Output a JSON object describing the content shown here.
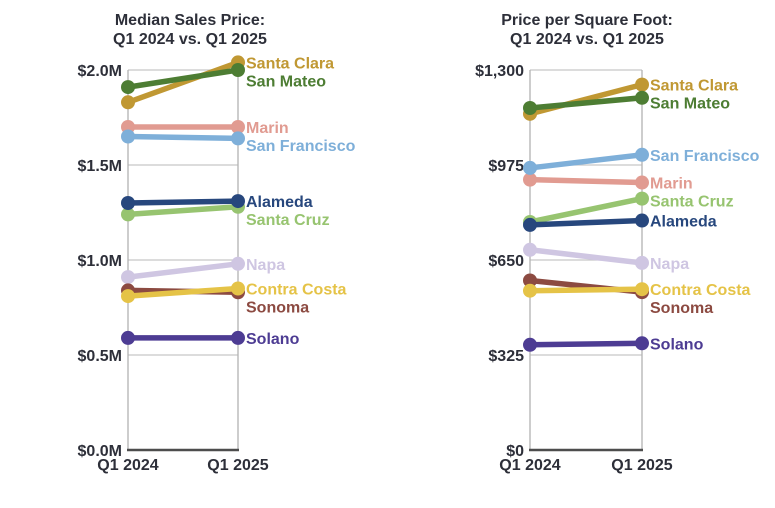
{
  "page": {
    "background": "#ffffff",
    "text_color": "#2d2f39",
    "grid_color": "#c8c8c8",
    "border_color": "#b2b2b2",
    "axis_color": "#4d4d4d"
  },
  "chart_data": [
    {
      "type": "line",
      "subtype": "slopegraph",
      "title": "Median Sales Price:",
      "subtitle": "Q1 2024 vs. Q1 2025",
      "unit": "millions of USD",
      "categories": [
        "Q1 2024",
        "Q1 2025"
      ],
      "ylim": [
        0,
        2.0
      ],
      "grid": true,
      "legend_position": "right-of-endpoints",
      "yticks": [
        {
          "value": 2.0,
          "label": "$2.0M"
        },
        {
          "value": 1.5,
          "label": "$1.5M"
        },
        {
          "value": 1.0,
          "label": "$1.0M"
        },
        {
          "value": 0.5,
          "label": "$0.5M"
        },
        {
          "value": 0.0,
          "label": "$0.0M"
        }
      ],
      "series": [
        {
          "name": "Santa Clara",
          "color": "#c09833",
          "values": [
            1.83,
            2.04
          ]
        },
        {
          "name": "San Mateo",
          "color": "#4d7d33",
          "values": [
            1.91,
            2.0
          ]
        },
        {
          "name": "Marin",
          "color": "#e19b91",
          "values": [
            1.7,
            1.7
          ]
        },
        {
          "name": "San Francisco",
          "color": "#7eafd9",
          "values": [
            1.65,
            1.64
          ]
        },
        {
          "name": "Santa Cruz",
          "color": "#97c470",
          "values": [
            1.24,
            1.28
          ]
        },
        {
          "name": "Alameda",
          "color": "#27477d",
          "values": [
            1.3,
            1.31
          ]
        },
        {
          "name": "Napa",
          "color": "#cfc6e2",
          "values": [
            0.91,
            0.98
          ]
        },
        {
          "name": "Sonoma",
          "color": "#8c4a41",
          "values": [
            0.84,
            0.83
          ]
        },
        {
          "name": "Contra Costa",
          "color": "#e5c347",
          "values": [
            0.81,
            0.85
          ]
        },
        {
          "name": "Solano",
          "color": "#4d3c93",
          "values": [
            0.59,
            0.59
          ]
        }
      ]
    },
    {
      "type": "line",
      "subtype": "slopegraph",
      "title": "Price per Square Foot:",
      "subtitle": "Q1 2024 vs. Q1 2025",
      "unit": "USD",
      "categories": [
        "Q1 2024",
        "Q1 2025"
      ],
      "ylim": [
        0,
        1300
      ],
      "grid": true,
      "legend_position": "right-of-endpoints",
      "yticks": [
        {
          "value": 1300,
          "label": "$1,300"
        },
        {
          "value": 975,
          "label": "$975"
        },
        {
          "value": 650,
          "label": "$650"
        },
        {
          "value": 325,
          "label": "$325"
        },
        {
          "value": 0,
          "label": "$0"
        }
      ],
      "series": [
        {
          "name": "Santa Clara",
          "color": "#c09833",
          "values": [
            1150,
            1250
          ]
        },
        {
          "name": "San Mateo",
          "color": "#4d7d33",
          "values": [
            1170,
            1205
          ]
        },
        {
          "name": "Marin",
          "color": "#e19b91",
          "values": [
            925,
            915
          ]
        },
        {
          "name": "San Francisco",
          "color": "#7eafd9",
          "values": [
            965,
            1010
          ]
        },
        {
          "name": "Santa Cruz",
          "color": "#97c470",
          "values": [
            780,
            860
          ]
        },
        {
          "name": "Alameda",
          "color": "#27477d",
          "values": [
            770,
            785
          ]
        },
        {
          "name": "Napa",
          "color": "#cfc6e2",
          "values": [
            685,
            640
          ]
        },
        {
          "name": "Sonoma",
          "color": "#8c4a41",
          "values": [
            580,
            540
          ]
        },
        {
          "name": "Contra Costa",
          "color": "#e5c347",
          "values": [
            545,
            550
          ]
        },
        {
          "name": "Solano",
          "color": "#4d3c93",
          "values": [
            360,
            365
          ]
        }
      ]
    }
  ]
}
